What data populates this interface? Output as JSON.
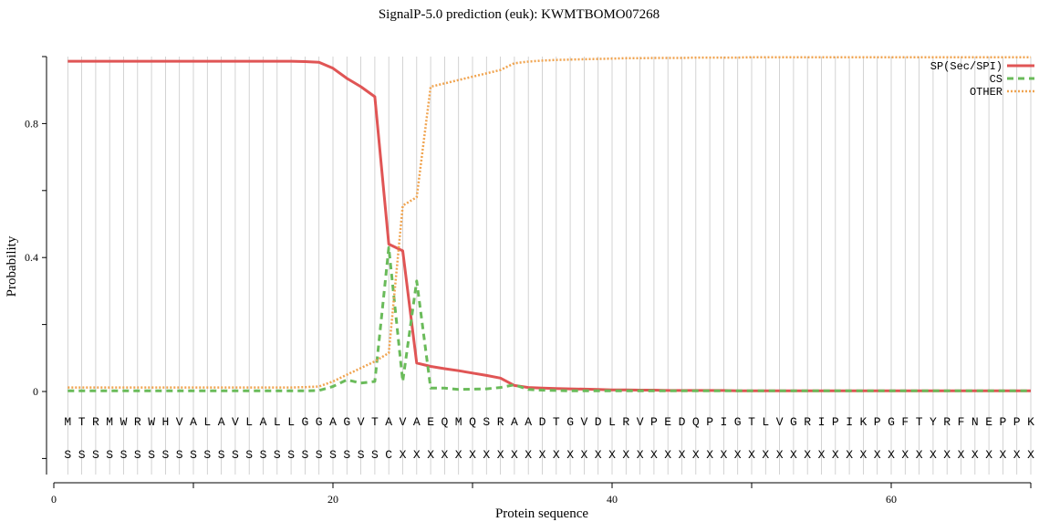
{
  "chart_data": {
    "type": "line",
    "title": "SignalP-5.0 prediction (euk):  KWMTBOMO07268",
    "xlabel": "Protein sequence",
    "ylabel": "Probability",
    "xlim": [
      0,
      70
    ],
    "ylim": [
      -0.25,
      1.0
    ],
    "x_ticks": [
      0,
      20,
      40,
      60
    ],
    "y_ticks": [
      0,
      0.4,
      0.8
    ],
    "y_tick_labels": [
      "0",
      "0.4",
      "0.8"
    ],
    "legend_position": "top-right",
    "grid": "vertical lines at each residue",
    "sequence": [
      "M",
      "T",
      "R",
      "M",
      "W",
      "R",
      "W",
      "H",
      "V",
      "A",
      "L",
      "A",
      "V",
      "L",
      "A",
      "L",
      "L",
      "G",
      "G",
      "A",
      "G",
      "V",
      "T",
      "A",
      "V",
      "A",
      "E",
      "Q",
      "M",
      "Q",
      "S",
      "R",
      "A",
      "A",
      "D",
      "T",
      "G",
      "V",
      "D",
      "L",
      "R",
      "V",
      "P",
      "E",
      "D",
      "Q",
      "P",
      "I",
      "G",
      "T",
      "L",
      "V",
      "G",
      "R",
      "I",
      "P",
      "I",
      "K",
      "P",
      "G",
      "F",
      "T",
      "Y",
      "R",
      "F",
      "N",
      "E",
      "P",
      "P",
      "K"
    ],
    "labels": [
      "S",
      "S",
      "S",
      "S",
      "S",
      "S",
      "S",
      "S",
      "S",
      "S",
      "S",
      "S",
      "S",
      "S",
      "S",
      "S",
      "S",
      "S",
      "S",
      "S",
      "S",
      "S",
      "S",
      "C",
      "X",
      "X",
      "X",
      "X",
      "X",
      "X",
      "X",
      "X",
      "X",
      "X",
      "X",
      "X",
      "X",
      "X",
      "X",
      "X",
      "X",
      "X",
      "X",
      "X",
      "X",
      "X",
      "X",
      "X",
      "X",
      "X",
      "X",
      "X",
      "X",
      "X",
      "X",
      "X",
      "X",
      "X",
      "X",
      "X",
      "X",
      "X",
      "X",
      "X",
      "X",
      "X",
      "X",
      "X",
      "X",
      "X"
    ],
    "series": [
      {
        "name": "SP(Sec/SPI)",
        "color": "#e05555",
        "dash": "solid",
        "values": [
          0.986,
          0.986,
          0.986,
          0.986,
          0.986,
          0.986,
          0.986,
          0.986,
          0.986,
          0.986,
          0.986,
          0.986,
          0.986,
          0.986,
          0.986,
          0.986,
          0.986,
          0.985,
          0.983,
          0.965,
          0.935,
          0.91,
          0.88,
          0.44,
          0.42,
          0.085,
          0.075,
          0.068,
          0.062,
          0.055,
          0.048,
          0.04,
          0.018,
          0.012,
          0.01,
          0.009,
          0.008,
          0.007,
          0.006,
          0.005,
          0.005,
          0.004,
          0.004,
          0.003,
          0.003,
          0.003,
          0.003,
          0.003,
          0.002,
          0.002,
          0.002,
          0.002,
          0.002,
          0.002,
          0.002,
          0.002,
          0.002,
          0.002,
          0.002,
          0.002,
          0.002,
          0.002,
          0.002,
          0.002,
          0.002,
          0.002,
          0.002,
          0.002,
          0.002,
          0.002
        ]
      },
      {
        "name": "CS",
        "color": "#6abb5a",
        "dash": "dashed",
        "values": [
          0.002,
          0.002,
          0.002,
          0.002,
          0.002,
          0.002,
          0.002,
          0.002,
          0.002,
          0.002,
          0.002,
          0.002,
          0.002,
          0.002,
          0.002,
          0.002,
          0.002,
          0.002,
          0.003,
          0.015,
          0.035,
          0.025,
          0.03,
          0.43,
          0.03,
          0.33,
          0.01,
          0.01,
          0.006,
          0.007,
          0.008,
          0.012,
          0.02,
          0.006,
          0.004,
          0.003,
          0.002,
          0.002,
          0.002,
          0.002,
          0.002,
          0.002,
          0.002,
          0.002,
          0.002,
          0.002,
          0.002,
          0.002,
          0.002,
          0.002,
          0.002,
          0.002,
          0.002,
          0.002,
          0.002,
          0.002,
          0.002,
          0.002,
          0.002,
          0.002,
          0.002,
          0.002,
          0.002,
          0.002,
          0.002,
          0.002,
          0.002,
          0.002,
          0.002,
          0.002
        ]
      },
      {
        "name": "OTHER",
        "color": "#f0a450",
        "dash": "dotted",
        "values": [
          0.012,
          0.012,
          0.012,
          0.012,
          0.012,
          0.012,
          0.012,
          0.012,
          0.012,
          0.012,
          0.012,
          0.012,
          0.012,
          0.012,
          0.012,
          0.012,
          0.012,
          0.013,
          0.015,
          0.03,
          0.05,
          0.07,
          0.09,
          0.115,
          0.555,
          0.58,
          0.91,
          0.92,
          0.93,
          0.94,
          0.95,
          0.96,
          0.98,
          0.985,
          0.988,
          0.99,
          0.991,
          0.992,
          0.993,
          0.994,
          0.995,
          0.995,
          0.996,
          0.996,
          0.996,
          0.997,
          0.997,
          0.997,
          0.997,
          0.998,
          0.998,
          0.998,
          0.998,
          0.998,
          0.998,
          0.998,
          0.998,
          0.998,
          0.998,
          0.998,
          0.998,
          0.998,
          0.998,
          0.998,
          0.998,
          0.998,
          0.998,
          0.998,
          0.998,
          0.998
        ]
      }
    ]
  }
}
